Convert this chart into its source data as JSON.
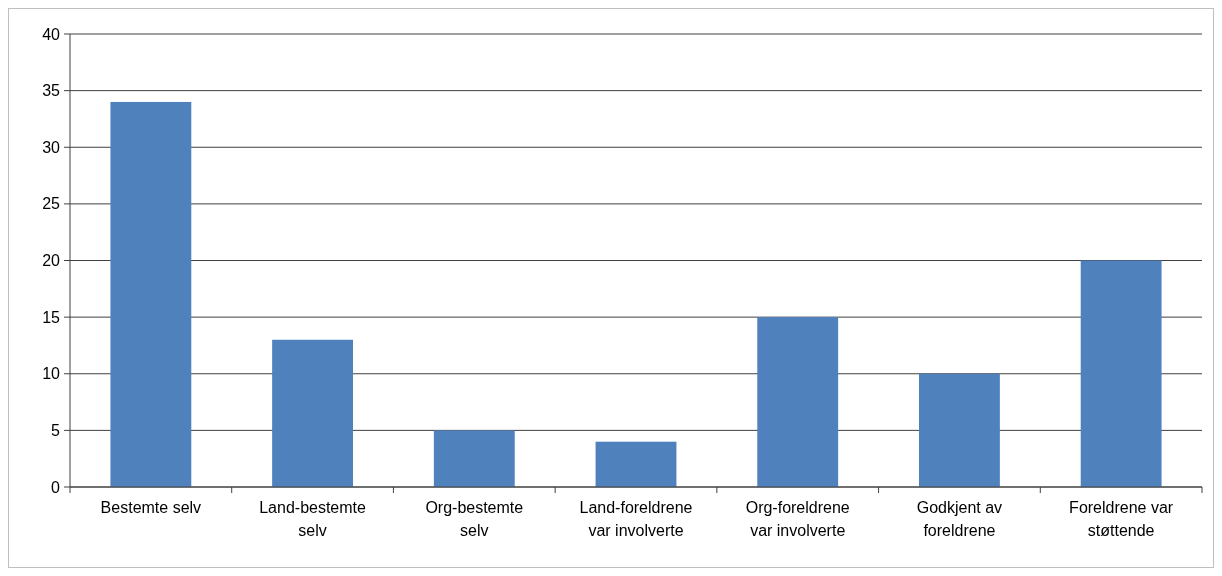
{
  "chart_data": {
    "type": "bar",
    "categories": [
      "Bestemte selv",
      "Land-bestemte selv",
      "Org-bestemte selv",
      "Land-foreldrene var involverte",
      "Org-foreldrene var involverte",
      "Godkjent av foreldrene",
      "Foreldrene var støttende"
    ],
    "values": [
      34,
      13,
      5,
      4,
      15,
      10,
      20
    ],
    "color": "#4f81bd",
    "ylim": [
      0,
      40
    ],
    "yticks": [
      0,
      5,
      10,
      15,
      20,
      25,
      30,
      35,
      40
    ],
    "grid": "y"
  }
}
